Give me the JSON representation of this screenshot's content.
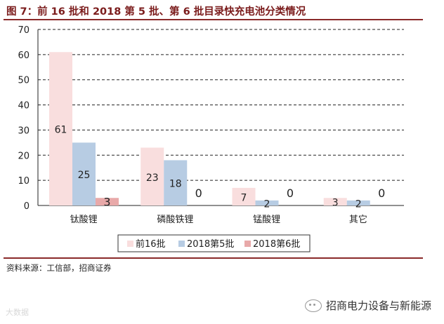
{
  "header": {
    "title": "图 7：前 16 批和 2018 第 5 批、第 6 批目录快充电池分类情况"
  },
  "footer": {
    "source": "资料来源：工信部，招商证券",
    "watermark_left": "大数据",
    "watermark_right": "招商电力设备与新能源"
  },
  "colors": {
    "title": "#7b1c1c",
    "rule": "#8a2a2a",
    "series": [
      "#f9dede",
      "#b7cce3",
      "#e8a9a9"
    ]
  },
  "chart_data": {
    "type": "bar",
    "categories": [
      "钛酸锂",
      "磷酸铁锂",
      "锰酸锂",
      "其它"
    ],
    "series": [
      {
        "name": "前16批",
        "values": [
          61,
          23,
          7,
          3
        ]
      },
      {
        "name": "2018第5批",
        "values": [
          25,
          18,
          2,
          2
        ]
      },
      {
        "name": "2018第6批",
        "values": [
          3,
          0,
          0,
          0
        ]
      }
    ],
    "ylim": [
      0,
      70
    ],
    "yticks": [
      0,
      10,
      20,
      30,
      40,
      50,
      60,
      70
    ],
    "grid": "dashed horizontal",
    "legend": "bottom",
    "data_labels": true,
    "xlabel": "",
    "ylabel": ""
  }
}
